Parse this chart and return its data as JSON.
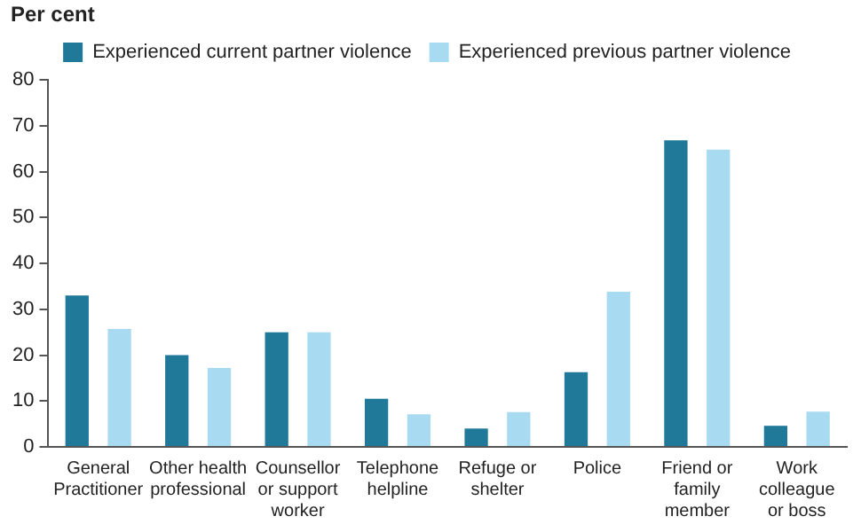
{
  "chart_data": {
    "type": "bar",
    "ylabel": "Per cent",
    "categories": [
      "General\nPractitioner",
      "Other health\nprofessional",
      "Counsellor\nor support\nworker",
      "Telephone\nhelpline",
      "Refuge or\nshelter",
      "Police",
      "Friend or\nfamily\nmember",
      "Work\ncolleague\nor boss"
    ],
    "series": [
      {
        "name": "Experienced current partner violence",
        "color": "#21799a",
        "values": [
          33,
          20,
          25,
          10.5,
          4,
          16.3,
          66.8,
          4.6
        ]
      },
      {
        "name": "Experienced previous partner violence",
        "color": "#a8daf2",
        "values": [
          25.7,
          17.2,
          25,
          7.1,
          7.6,
          33.8,
          64.8,
          7.7
        ]
      }
    ],
    "ylim": [
      0,
      80
    ],
    "yticks": [
      0,
      10,
      20,
      30,
      40,
      50,
      60,
      70,
      80
    ],
    "grid": false,
    "legend": "top"
  }
}
